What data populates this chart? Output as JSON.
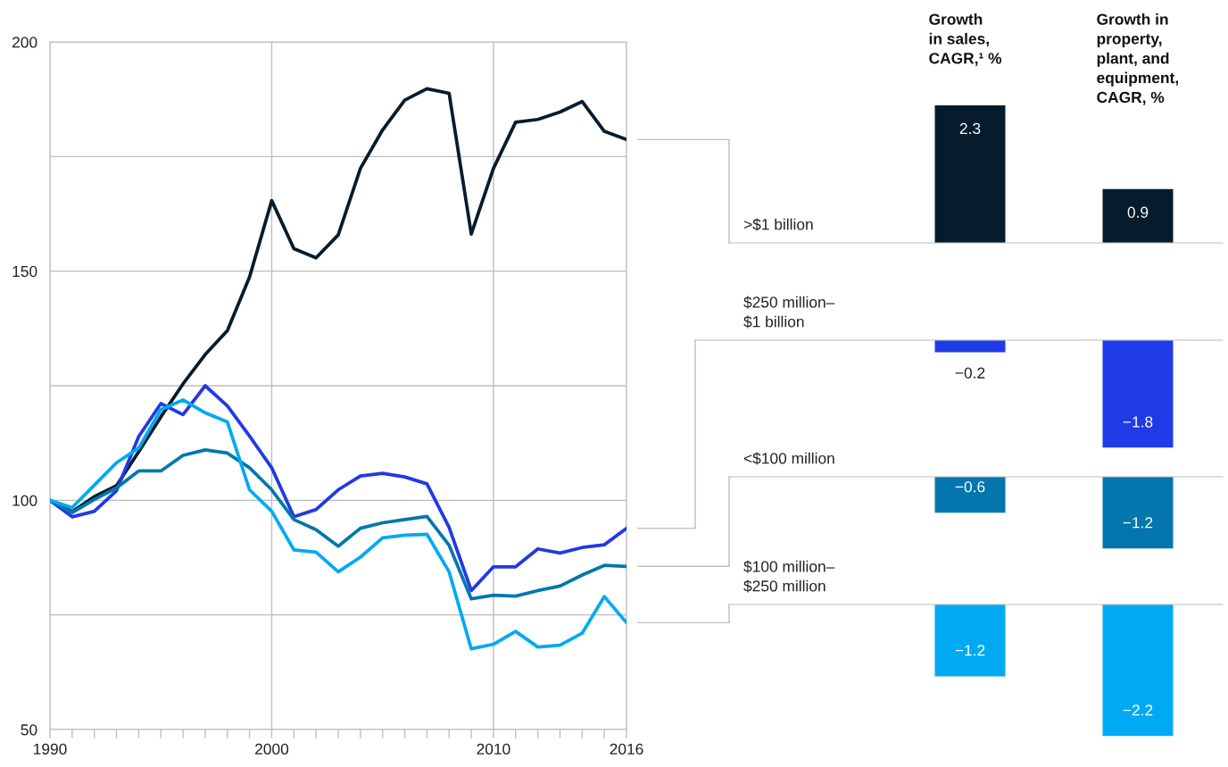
{
  "chart_data": [
    {
      "type": "line",
      "x": [
        1990,
        1991,
        1992,
        1993,
        1994,
        1995,
        1996,
        1997,
        1998,
        1999,
        2000,
        2001,
        2002,
        2003,
        2004,
        2005,
        2006,
        2007,
        2008,
        2009,
        2010,
        2011,
        2012,
        2013,
        2014,
        2015,
        2016
      ],
      "series": [
        {
          "color": "#061c2c",
          "values": [
            100,
            97.5,
            100.8,
            103.2,
            110.6,
            118.2,
            125.4,
            131.8,
            137.0,
            148.7,
            165.4,
            154.9,
            152.9,
            157.9,
            172.4,
            180.8,
            187.3,
            189.8,
            188.8,
            158.1,
            172.4,
            182.5,
            183.1,
            184.7,
            187.0,
            180.5,
            178.7
          ]
        },
        {
          "color": "#2239e6",
          "values": [
            100,
            96.4,
            97.6,
            102.1,
            113.9,
            121.1,
            118.7,
            125.0,
            120.6,
            114.0,
            107.1,
            96.4,
            98.0,
            102.3,
            105.3,
            105.9,
            105.1,
            103.6,
            94.1,
            80.3,
            85.5,
            85.5,
            89.4,
            88.5,
            89.7,
            90.3,
            93.9
          ]
        },
        {
          "color": "#0377ad",
          "values": [
            100,
            97.3,
            100.2,
            102.7,
            106.4,
            106.4,
            109.8,
            111.0,
            110.3,
            107.1,
            102.3,
            95.8,
            93.6,
            90.0,
            93.9,
            95.1,
            95.8,
            96.5,
            90.2,
            78.5,
            79.3,
            79.1,
            80.3,
            81.3,
            83.7,
            85.8,
            85.6
          ]
        },
        {
          "color": "#00a9f4",
          "values": [
            100,
            98.4,
            103.3,
            108.2,
            111.4,
            119.8,
            121.9,
            119.1,
            117.1,
            102.3,
            97.6,
            89.2,
            88.7,
            84.4,
            87.6,
            91.8,
            92.4,
            92.6,
            84.4,
            67.6,
            68.6,
            71.4,
            68.0,
            68.4,
            71.0,
            79.0,
            73.3
          ]
        }
      ],
      "xlim": [
        1990,
        2016
      ],
      "ylim": [
        50,
        200
      ],
      "xticks": [
        1990,
        {
          "value": 1991,
          "label": null
        },
        {
          "value": 1992,
          "label": null
        },
        {
          "value": 1993,
          "label": null
        },
        {
          "value": 1994,
          "label": null
        },
        {
          "value": 1995,
          "label": null
        },
        {
          "value": 1996,
          "label": null
        },
        {
          "value": 1997,
          "label": null
        },
        {
          "value": 1998,
          "label": null
        },
        {
          "value": 1999,
          "label": null
        },
        2000,
        {
          "value": 2001,
          "label": null
        },
        {
          "value": 2002,
          "label": null
        },
        {
          "value": 2003,
          "label": null
        },
        {
          "value": 2004,
          "label": null
        },
        {
          "value": 2005,
          "label": null
        },
        {
          "value": 2006,
          "label": null
        },
        {
          "value": 2007,
          "label": null
        },
        {
          "value": 2008,
          "label": null
        },
        {
          "value": 2009,
          "label": null
        },
        2010,
        {
          "value": 2011,
          "label": null
        },
        {
          "value": 2012,
          "label": null
        },
        {
          "value": 2013,
          "label": null
        },
        {
          "value": 2014,
          "label": null
        },
        {
          "value": 2015,
          "label": null
        },
        2016
      ],
      "yticks": [
        50,
        {
          "value": 75,
          "label": null
        },
        100,
        {
          "value": 125,
          "label": null
        },
        150,
        {
          "value": 175,
          "label": null
        },
        200
      ],
      "grid": true,
      "line_style": "solid",
      "marker": "none"
    },
    {
      "type": "bar",
      "categories": [
        "Growth\nin sales,\nCAGR,¹ %",
        "Growth in\nproperty,\nplant, and\nequipment,\nCAGR, %"
      ],
      "series": [
        {
          "name": ">$1 billion",
          "color": "#061c2c",
          "values": [
            2.3,
            0.9
          ]
        }
      ],
      "data_labels": true,
      "tick_labels": "x"
    },
    {
      "type": "bar",
      "categories": [
        null,
        null
      ],
      "series": [
        {
          "name": "$250 million–\n$1 billion",
          "color": "#1f3be8",
          "values": [
            -0.2,
            -1.8
          ]
        }
      ],
      "data_labels": true,
      "tick_labels": false
    },
    {
      "type": "bar",
      "categories": [
        null,
        null
      ],
      "series": [
        {
          "name": "<$100 million",
          "color": "#0377ad",
          "values": [
            -0.6,
            -1.2
          ]
        }
      ],
      "data_labels": true,
      "tick_labels": false
    },
    {
      "type": "bar",
      "categories": [
        null,
        null
      ],
      "series": [
        {
          "name": "$100 million–\n$250 million",
          "color": "#00a9f4",
          "values": [
            -1.2,
            -2.2
          ]
        }
      ],
      "data_labels": true,
      "tick_labels": false
    }
  ]
}
